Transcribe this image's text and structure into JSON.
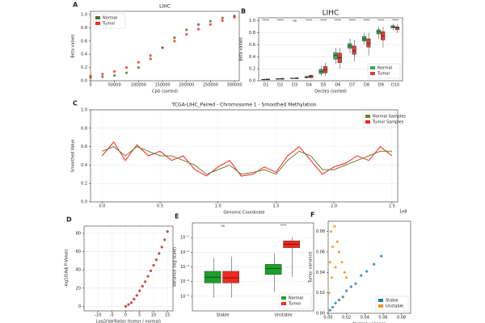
{
  "chart_data": [
    {
      "type": "scatter",
      "panel": "A",
      "title": "LIHC",
      "xlabel": "CpG (sorted)",
      "ylabel": "Beta values",
      "xlim": [
        0,
        310000
      ],
      "ylim": [
        0,
        1.05
      ],
      "xticks": [
        0,
        50000,
        100000,
        150000,
        200000,
        250000,
        300000
      ],
      "yticks": [
        {
          "value": 0,
          "label": "0.0"
        },
        {
          "value": 0.2,
          "label": "0.2"
        },
        {
          "value": 0.4,
          "label": "0.4"
        },
        {
          "value": 0.6,
          "label": "0.6"
        },
        {
          "value": 0.8,
          "label": "0.8"
        },
        {
          "value": 1.0,
          "label": "1.0"
        }
      ],
      "legend": "upper left",
      "grid": false,
      "x": [
        0,
        25000,
        50000,
        75000,
        100000,
        125000,
        150000,
        175000,
        200000,
        225000,
        250000,
        275000,
        300000
      ],
      "series": [
        {
          "name": "Normal",
          "color": "#556b2f",
          "values": [
            0.05,
            0.06,
            0.08,
            0.12,
            0.2,
            0.33,
            0.5,
            0.65,
            0.77,
            0.85,
            0.9,
            0.95,
            0.98
          ]
        },
        {
          "name": "Tumor",
          "color": "#ff2a1a",
          "values": [
            0.07,
            0.1,
            0.14,
            0.2,
            0.28,
            0.38,
            0.5,
            0.6,
            0.7,
            0.78,
            0.85,
            0.91,
            0.96
          ]
        }
      ]
    },
    {
      "type": "box",
      "panel": "B",
      "title": "LIHC",
      "xlabel": "Deciles (sorted)",
      "ylabel": "Beta values",
      "ylim": [
        0,
        1.05
      ],
      "yticks": [
        {
          "value": 0,
          "label": "0.0"
        },
        {
          "value": 0.2,
          "label": "0.2"
        },
        {
          "value": 0.4,
          "label": "0.4"
        },
        {
          "value": 0.6,
          "label": "0.6"
        },
        {
          "value": 0.8,
          "label": "0.8"
        },
        {
          "value": 1.0,
          "label": "1.0"
        }
      ],
      "legend": "lower right",
      "grid": true,
      "categories": [
        "D1",
        "D2",
        "D3",
        "D4",
        "D5",
        "D6",
        "D7",
        "D8",
        "D9",
        "D10"
      ],
      "annotations": [
        "****",
        "****",
        "ns",
        "****",
        "****",
        "****",
        "****",
        "****",
        "****",
        "****"
      ],
      "series": [
        {
          "name": "Normal",
          "color": "#3aa655",
          "low": [
            0.01,
            0.02,
            0.03,
            0.04,
            0.08,
            0.28,
            0.46,
            0.6,
            0.7,
            0.84
          ],
          "q1": [
            0.015,
            0.025,
            0.035,
            0.05,
            0.12,
            0.36,
            0.54,
            0.66,
            0.78,
            0.88
          ],
          "median": [
            0.02,
            0.03,
            0.04,
            0.06,
            0.15,
            0.42,
            0.58,
            0.7,
            0.82,
            0.9
          ],
          "q3": [
            0.025,
            0.035,
            0.045,
            0.07,
            0.19,
            0.47,
            0.62,
            0.74,
            0.85,
            0.92
          ],
          "high": [
            0.03,
            0.04,
            0.05,
            0.09,
            0.25,
            0.55,
            0.7,
            0.8,
            0.9,
            0.95
          ]
        },
        {
          "name": "Tumor",
          "color": "#d9413a",
          "low": [
            0.01,
            0.02,
            0.03,
            0.04,
            0.08,
            0.2,
            0.32,
            0.42,
            0.55,
            0.8
          ],
          "q1": [
            0.015,
            0.025,
            0.035,
            0.05,
            0.13,
            0.3,
            0.44,
            0.56,
            0.68,
            0.85
          ],
          "median": [
            0.02,
            0.03,
            0.04,
            0.07,
            0.18,
            0.38,
            0.5,
            0.62,
            0.75,
            0.88
          ],
          "q3": [
            0.03,
            0.04,
            0.05,
            0.09,
            0.24,
            0.46,
            0.58,
            0.7,
            0.82,
            0.9
          ],
          "high": [
            0.04,
            0.05,
            0.06,
            0.11,
            0.3,
            0.55,
            0.68,
            0.8,
            0.9,
            0.95
          ]
        }
      ]
    },
    {
      "type": "line",
      "panel": "C",
      "title": "TCGA-LIHC_Paired - Chromosome 1 - Smoothed Methylation",
      "xlabel": "Genomic Coordinate",
      "ylabel": "Smoothed Value",
      "offset_label": "1e8",
      "xlim": [
        -0.1,
        2.55
      ],
      "ylim": [
        0,
        1.0
      ],
      "xticks": [
        {
          "value": 0,
          "label": "0.0"
        },
        {
          "value": 0.5,
          "label": "0.5"
        },
        {
          "value": 1.0,
          "label": "1.0"
        },
        {
          "value": 1.5,
          "label": "1.5"
        },
        {
          "value": 2.0,
          "label": "2.0"
        },
        {
          "value": 2.5,
          "label": "2.5"
        }
      ],
      "yticks": [
        {
          "value": 0,
          "label": "0.0"
        },
        {
          "value": 0.2,
          "label": "0.2"
        },
        {
          "value": 0.4,
          "label": "0.4"
        },
        {
          "value": 0.6,
          "label": "0.6"
        },
        {
          "value": 0.8,
          "label": "0.8"
        },
        {
          "value": 1.0,
          "label": "1.0"
        }
      ],
      "legend": "upper right",
      "grid": true,
      "x": [
        0,
        0.1,
        0.2,
        0.3,
        0.4,
        0.5,
        0.6,
        0.7,
        0.8,
        0.9,
        1.0,
        1.1,
        1.2,
        1.3,
        1.4,
        1.5,
        1.6,
        1.7,
        1.8,
        1.9,
        2.0,
        2.1,
        2.2,
        2.3,
        2.4,
        2.5
      ],
      "series": [
        {
          "name": "Normal Samples",
          "color": "#6b7f2a",
          "values": [
            0.55,
            0.6,
            0.5,
            0.6,
            0.55,
            0.5,
            0.5,
            0.45,
            0.4,
            0.3,
            0.35,
            0.4,
            0.3,
            0.32,
            0.35,
            0.3,
            0.45,
            0.55,
            0.5,
            0.35,
            0.35,
            0.4,
            0.45,
            0.5,
            0.55,
            0.55
          ]
        },
        {
          "name": "Tumor Samples",
          "color": "#ff2020",
          "values": [
            0.5,
            0.65,
            0.45,
            0.62,
            0.5,
            0.55,
            0.45,
            0.5,
            0.35,
            0.28,
            0.38,
            0.45,
            0.28,
            0.3,
            0.38,
            0.32,
            0.5,
            0.6,
            0.45,
            0.3,
            0.38,
            0.42,
            0.5,
            0.45,
            0.6,
            0.5
          ]
        }
      ]
    },
    {
      "type": "scatter",
      "panel": "D",
      "xlabel": "Log2(VarRatio) (tumor / normal)",
      "ylabel": "-log10(Adj P-Value)",
      "xlim": [
        -15,
        17
      ],
      "ylim": [
        -5,
        88
      ],
      "xticks": [
        -10,
        -5,
        0,
        5,
        10,
        15
      ],
      "yticks": [
        0,
        20,
        40,
        60,
        80
      ],
      "grid": true,
      "x": [
        0,
        1,
        2,
        3,
        4,
        5,
        6,
        7,
        8,
        9,
        10,
        11,
        12,
        13,
        14,
        15
      ],
      "color": "#b22222",
      "values": [
        0,
        2,
        4,
        8,
        12,
        17,
        22,
        27,
        33,
        39,
        45,
        51,
        58,
        65,
        73,
        82
      ]
    },
    {
      "type": "box",
      "panel": "E",
      "ylabel": "Variance (log scale)",
      "log_scale": true,
      "ylim": [
        1e-06,
        1
      ],
      "yticks": [
        {
          "value": 1e-05,
          "label": "10⁻⁵"
        },
        {
          "value": 0.0001,
          "label": "10⁻⁴"
        },
        {
          "value": 0.001,
          "label": "10⁻³"
        },
        {
          "value": 0.01,
          "label": "10⁻²"
        },
        {
          "value": 0.1,
          "label": "10⁻¹"
        }
      ],
      "legend": "lower right",
      "grid": true,
      "categories": [
        "Stable",
        "Unstable"
      ],
      "annotations": [
        "ns",
        "****"
      ],
      "series": [
        {
          "name": "Normal",
          "color": "#1e9e2a",
          "low": [
            8e-06,
            2e-05
          ],
          "q1": [
            8e-05,
            0.0003
          ],
          "median": [
            0.0002,
            0.0008
          ],
          "q3": [
            0.0005,
            0.0015
          ],
          "high": [
            0.004,
            0.008
          ]
        },
        {
          "name": "Tumor",
          "color": "#f02a20",
          "low": [
            8e-06,
            0.0002
          ],
          "q1": [
            8e-05,
            0.02
          ],
          "median": [
            0.00018,
            0.035
          ],
          "q3": [
            0.0005,
            0.06
          ],
          "high": [
            0.005,
            0.1
          ]
        }
      ]
    },
    {
      "type": "scatter",
      "panel": "F",
      "xlabel": "Normal variance",
      "ylabel": "Tumor variance",
      "xlim": [
        0,
        0.09
      ],
      "ylim": [
        0,
        0.09
      ],
      "xticks": [
        {
          "value": 0,
          "label": "0.00"
        },
        {
          "value": 0.02,
          "label": "0.02"
        },
        {
          "value": 0.04,
          "label": "0.04"
        },
        {
          "value": 0.06,
          "label": "0.06"
        },
        {
          "value": 0.08,
          "label": "0.08"
        }
      ],
      "yticks": [
        {
          "value": 0,
          "label": "0.00"
        },
        {
          "value": 0.02,
          "label": "0.02"
        },
        {
          "value": 0.04,
          "label": "0.04"
        },
        {
          "value": 0.06,
          "label": "0.06"
        },
        {
          "value": 0.08,
          "label": "0.08"
        }
      ],
      "legend": "lower right",
      "grid": false,
      "series": [
        {
          "name": "Stable",
          "color": "#1f77b4",
          "x": [
            0.002,
            0.005,
            0.008,
            0.012,
            0.016,
            0.02,
            0.025,
            0.03,
            0.036,
            0.042,
            0.05,
            0.058
          ],
          "values": [
            0.003,
            0.006,
            0.01,
            0.013,
            0.016,
            0.022,
            0.026,
            0.029,
            0.037,
            0.041,
            0.048,
            0.056
          ]
        },
        {
          "name": "Unstable",
          "color": "#ff8c1a",
          "x": [
            0.001,
            0.002,
            0.003,
            0.004,
            0.005,
            0.007,
            0.008,
            0.01,
            0.012,
            0.015,
            0.018,
            0.02
          ],
          "values": [
            0.02,
            0.05,
            0.08,
            0.035,
            0.065,
            0.085,
            0.045,
            0.07,
            0.06,
            0.05,
            0.04,
            0.035
          ]
        }
      ]
    }
  ]
}
